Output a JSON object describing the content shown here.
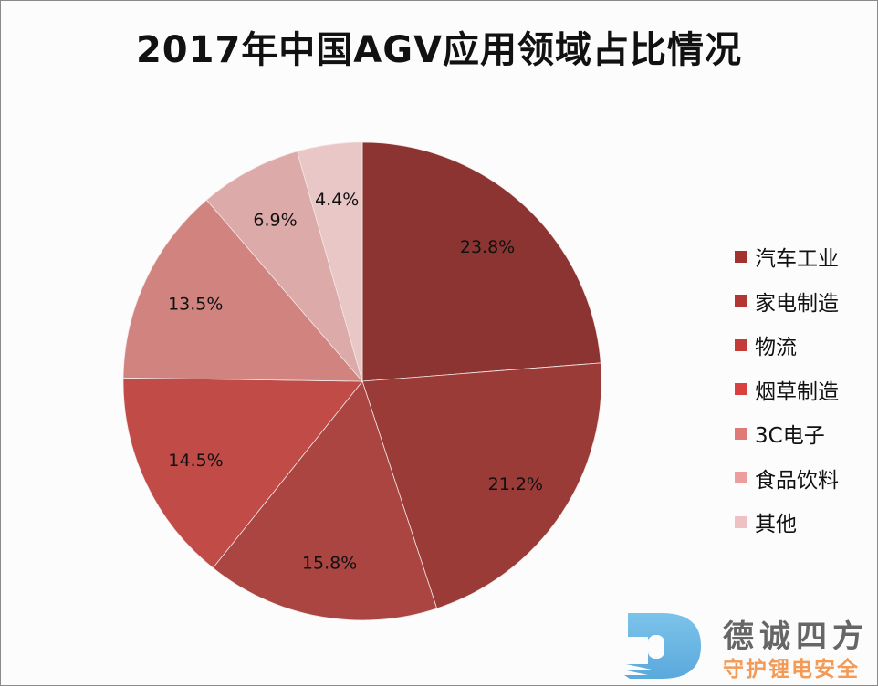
{
  "chart_data": {
    "type": "pie",
    "title": "2017年中国AGV应用领域占比情况",
    "categories": [
      "汽车工业",
      "家电制造",
      "物流",
      "烟草制造",
      "3C电子",
      "食品饮料",
      "其他"
    ],
    "values": [
      23.8,
      21.2,
      15.8,
      14.5,
      13.5,
      6.9,
      4.4
    ],
    "data_labels": [
      "23.8%",
      "21.2%",
      "15.8%",
      "14.5%",
      "13.5%",
      "6.9%",
      "4.4%"
    ],
    "colors": [
      "#8b3431",
      "#9a3b38",
      "#aa4541",
      "#c04b47",
      "#d0837f",
      "#dcaaa8",
      "#e9c7c7"
    ],
    "legend_colors": [
      "#a3322f",
      "#b33633",
      "#c43c38",
      "#d8413d",
      "#e07a78",
      "#ec9e9e",
      "#efc1c4"
    ],
    "start_angle": "top",
    "direction": "clockwise",
    "legend": "right"
  },
  "watermark": {
    "name": "德诚四方",
    "slogan": "守护锂电安全"
  }
}
